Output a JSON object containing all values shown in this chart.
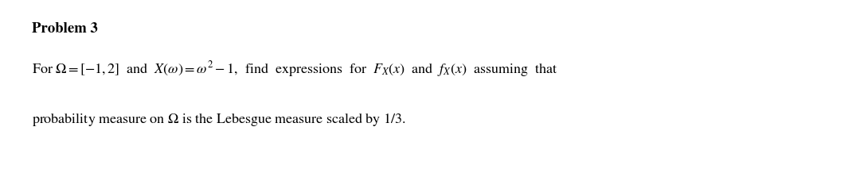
{
  "title": "Problem 3",
  "title_fontsize": 13.5,
  "line1": "For $\\Omega = [-1,2]$  and  $X(\\omega) = \\omega^2 - 1$,  find  expressions  for  $F_X(x)$  and  $f_X(x)$  assuming  that",
  "line2": "probability measure on $\\Omega$ is the Lebesgue measure scaled by $1/3$.",
  "body_fontsize": 13.0,
  "background_color": "#ffffff",
  "text_color": "#000000",
  "fig_width": 10.8,
  "fig_height": 2.18,
  "dpi": 100
}
